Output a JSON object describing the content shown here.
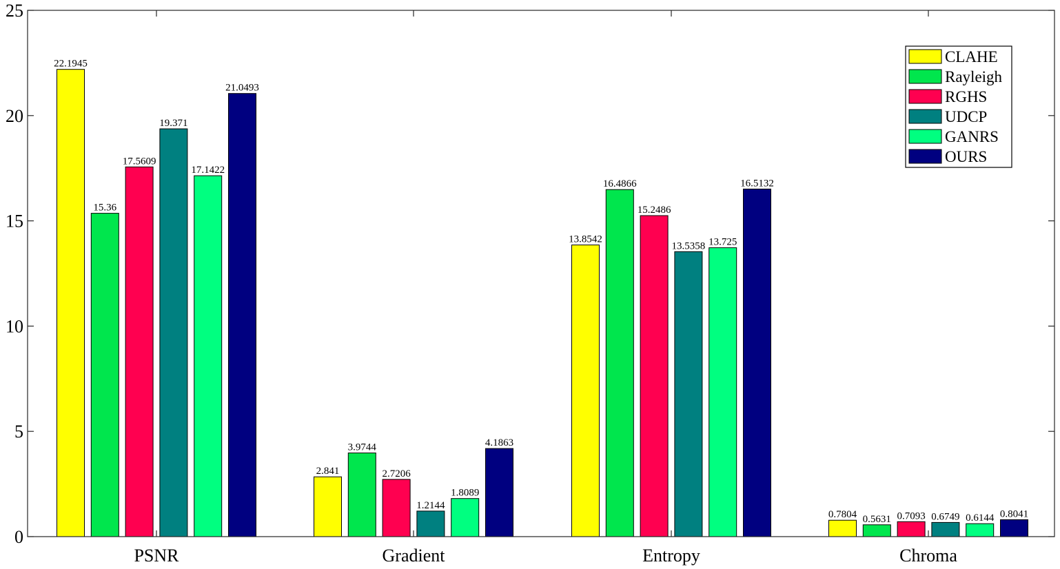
{
  "chart_data": {
    "type": "bar",
    "title": "",
    "xlabel": "",
    "ylabel": "",
    "ylim": [
      0,
      25
    ],
    "yticks": [
      0,
      5,
      10,
      15,
      20,
      25
    ],
    "grid": false,
    "legend_position": "top-right",
    "categories": [
      "PSNR",
      "Gradient",
      "Entropy",
      "Chroma"
    ],
    "series": [
      {
        "name": "CLAHE",
        "color": "#ffff00",
        "values": [
          22.1945,
          2.841,
          13.8542,
          0.7804
        ],
        "labels": [
          "22.1945",
          "2.841",
          "13.8542",
          "0.7804"
        ]
      },
      {
        "name": "Rayleigh",
        "color": "#00e64d",
        "values": [
          15.36,
          3.9744,
          16.4866,
          0.5631
        ],
        "labels": [
          "15.36",
          "3.9744",
          "16.4866",
          "0.5631"
        ]
      },
      {
        "name": "RGHS",
        "color": "#ff0050",
        "values": [
          17.5609,
          2.7206,
          15.2486,
          0.7093
        ],
        "labels": [
          "17.5609",
          "2.7206",
          "15.2486",
          "0.7093"
        ]
      },
      {
        "name": "UDCP",
        "color": "#008080",
        "values": [
          19.371,
          1.2144,
          13.5358,
          0.6749
        ],
        "labels": [
          "19.371",
          "1.2144",
          "13.5358",
          "0.6749"
        ]
      },
      {
        "name": "GANRS",
        "color": "#00ff80",
        "values": [
          17.1422,
          1.8089,
          13.725,
          0.6144
        ],
        "labels": [
          "17.1422",
          "1.8089",
          "13.725",
          "0.6144"
        ]
      },
      {
        "name": "OURS",
        "color": "#000080",
        "values": [
          21.0493,
          4.1863,
          16.5132,
          0.8041
        ],
        "labels": [
          "21.0493",
          "4.1863",
          "16.5132",
          "0.8041"
        ]
      }
    ]
  }
}
